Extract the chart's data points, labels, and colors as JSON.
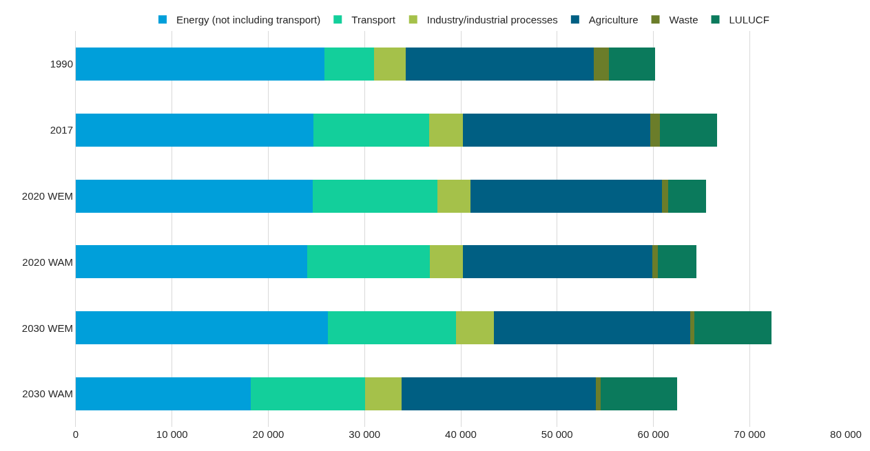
{
  "chart_data": {
    "type": "bar",
    "orientation": "horizontal",
    "stacked": true,
    "categories": [
      "1990",
      "2017",
      "2020 WEM",
      "2020 WAM",
      "2030 WEM",
      "2030 WAM"
    ],
    "series": [
      {
        "name": "Energy (not including transport)",
        "color": "#009fda",
        "values": [
          25800,
          24700,
          24600,
          24050,
          26200,
          18150
        ]
      },
      {
        "name": "Transport",
        "color": "#13cf9b",
        "values": [
          5200,
          12000,
          13000,
          12700,
          13300,
          11900
        ]
      },
      {
        "name": "Industry/industrial processes",
        "color": "#a5c14a",
        "values": [
          3300,
          3500,
          3400,
          3450,
          3900,
          3800
        ]
      },
      {
        "name": "Agriculture",
        "color": "#005f83",
        "values": [
          19500,
          19500,
          19900,
          19700,
          20400,
          20200
        ]
      },
      {
        "name": "Waste",
        "color": "#6b7d2a",
        "values": [
          1600,
          1000,
          650,
          600,
          450,
          450
        ]
      },
      {
        "name": "LULUCF",
        "color": "#0b7a5c",
        "values": [
          4800,
          5900,
          3900,
          4000,
          8050,
          8000
        ]
      }
    ],
    "xlim": [
      0,
      80000
    ],
    "xticks": [
      0,
      {
        "value": 10000,
        "label": "10 000"
      },
      {
        "value": 20000,
        "label": "20 000"
      },
      {
        "value": 30000,
        "label": "30 000"
      },
      {
        "value": 40000,
        "label": "40 000"
      },
      {
        "value": 50000,
        "label": "50 000"
      },
      {
        "value": 60000,
        "label": "60 000"
      },
      {
        "value": 70000,
        "label": "70 000"
      },
      {
        "value": 80000,
        "label": "80 000"
      }
    ],
    "grid": "x",
    "legend": "top"
  }
}
